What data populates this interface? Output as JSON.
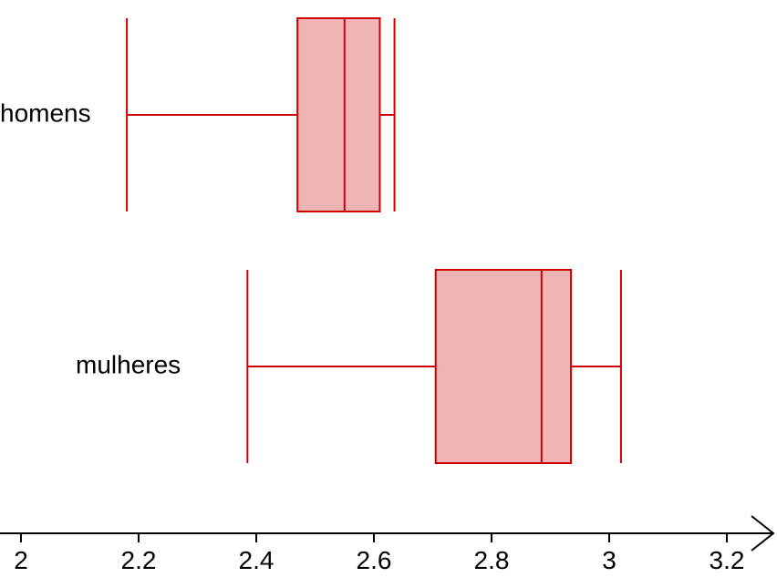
{
  "chart_data": {
    "type": "boxplot",
    "title": "",
    "xlabel": "",
    "ylabel": "",
    "xlim": [
      1.96,
      3.29
    ],
    "ticks": [
      2,
      2.2,
      2.4,
      2.6,
      2.8,
      3,
      3.2
    ],
    "tick_labels": [
      "2",
      "2.2",
      "2.4",
      "2.6",
      "2.8",
      "3",
      "3.2"
    ],
    "grid": false,
    "series": [
      {
        "name": "homens",
        "min": 2.18,
        "q1": 2.47,
        "median": 2.55,
        "q3": 2.61,
        "max": 2.635
      },
      {
        "name": "mulheres",
        "min": 2.385,
        "q1": 2.705,
        "median": 2.885,
        "q3": 2.935,
        "max": 3.02
      }
    ],
    "colors": {
      "stroke": "#cc0000",
      "fill": "#f0b4b4",
      "axis": "#000000"
    }
  }
}
